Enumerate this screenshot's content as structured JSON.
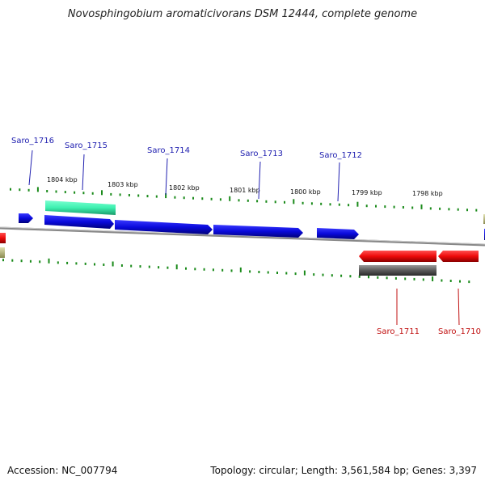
{
  "title": "Novosphingobium aromaticivorans DSM 12444, complete genome",
  "accession": "Accession: NC_007794",
  "summary": "Topology: circular; Length: 3,561,584 bp; Genes: 3,397",
  "colors": {
    "forward_gene": "#0a0adc",
    "reverse_gene": "#ee0a0a",
    "rna": "#3ef0b0",
    "other_feature": "#5a5a5a",
    "olive_feature": "#b4b478",
    "tick": "#1a8a1a",
    "backbone": "#888888",
    "forward_label": "#2020b0",
    "reverse_label": "#c01010"
  },
  "ticks": [
    {
      "label": "1804 kbp"
    },
    {
      "label": "1803 kbp"
    },
    {
      "label": "1802 kbp"
    },
    {
      "label": "1801 kbp"
    },
    {
      "label": "1800 kbp"
    },
    {
      "label": "1799 kbp"
    },
    {
      "label": "1798 kbp"
    }
  ],
  "forward_genes": [
    {
      "name": "Saro_1716"
    },
    {
      "name": "Saro_1715"
    },
    {
      "name": "Saro_1714"
    },
    {
      "name": "Saro_1713"
    },
    {
      "name": "Saro_1712"
    }
  ],
  "reverse_genes": [
    {
      "name": "Saro_1711"
    },
    {
      "name": "Saro_1710"
    }
  ]
}
